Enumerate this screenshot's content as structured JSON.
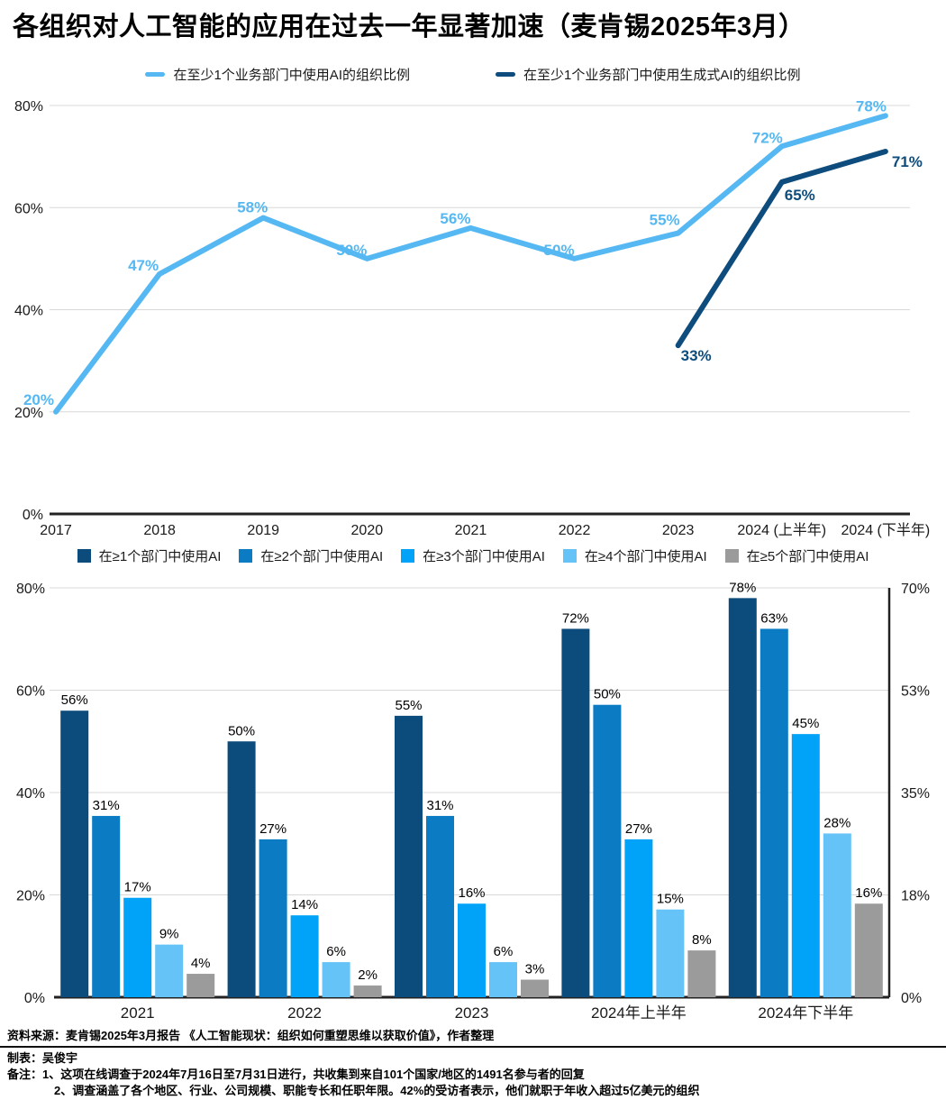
{
  "title": "各组织对人工智能的应用在过去一年显著加速（麦肯锡2025年3月）",
  "colors": {
    "light_blue": "#55B8F2",
    "dark_navy": "#0D4C7C",
    "bar1": "#0C4C7C",
    "bar2": "#0B7BC4",
    "bar3": "#00A3F7",
    "bar4": "#66C3F8",
    "bar5": "#9B9B9B",
    "grid": "#D8D8D8",
    "axis": "#222222",
    "tick_text": "#1A1A1A",
    "bar_label_text": "#000000"
  },
  "chart_data": [
    {
      "type": "line",
      "title": "",
      "categories": [
        "2017",
        "2018",
        "2019",
        "2020",
        "2021",
        "2022",
        "2023",
        "2024 (上半年)",
        "2024 (下半年)"
      ],
      "series": [
        {
          "name": "在至少1个业务部门中使用AI的组织比例",
          "color_key": "light_blue",
          "values": [
            20,
            47,
            58,
            50,
            56,
            50,
            55,
            72,
            78
          ]
        },
        {
          "name": "在至少1个业务部门中使用生成式AI的组织比例",
          "color_key": "dark_navy",
          "values": [
            null,
            null,
            null,
            null,
            null,
            null,
            33,
            65,
            71
          ]
        }
      ],
      "ylim": [
        0,
        80
      ],
      "yticks": [
        0,
        20,
        40,
        60,
        80
      ],
      "ytick_labels": [
        "0%",
        "20%",
        "40%",
        "60%",
        "80%"
      ],
      "grid": true,
      "legend_position": "top"
    },
    {
      "type": "bar",
      "title": "",
      "categories": [
        "2021",
        "2022",
        "2023",
        "2024年上半年",
        "2024年下半年"
      ],
      "series": [
        {
          "name": "在≥1个部门中使用AI",
          "color_key": "bar1",
          "axis": "left",
          "values": [
            56,
            50,
            55,
            72,
            78
          ]
        },
        {
          "name": "在≥2个部门中使用AI",
          "color_key": "bar2",
          "axis": "right",
          "values": [
            31,
            27,
            31,
            50,
            63
          ]
        },
        {
          "name": "在≥3个部门中使用AI",
          "color_key": "bar3",
          "axis": "right",
          "values": [
            17,
            14,
            16,
            27,
            45
          ]
        },
        {
          "name": "在≥4个部门中使用AI",
          "color_key": "bar4",
          "axis": "right",
          "values": [
            9,
            6,
            6,
            15,
            28
          ]
        },
        {
          "name": "在≥5个部门中使用AI",
          "color_key": "bar5",
          "axis": "right",
          "values": [
            4,
            2,
            3,
            8,
            16
          ]
        }
      ],
      "left_axis": {
        "max": 80,
        "ticks": [
          0,
          20,
          40,
          60,
          80
        ],
        "tick_labels": [
          "0%",
          "20%",
          "40%",
          "60%",
          "80%"
        ]
      },
      "right_axis": {
        "max": 70,
        "tick_labels": [
          "0%",
          "18%",
          "35%",
          "53%",
          "70%"
        ]
      },
      "grid": true,
      "legend_position": "top"
    }
  ],
  "footer": {
    "source": "资料来源：麦肯锡2025年3月报告 《人工智能现状：组织如何重塑思维以获取价值》，作者整理",
    "maker": "制表：吴俊宇",
    "note1": "备注：1、这项在线调查于2024年7月16日至7月31日进行，共收集到来自101个国家/地区的1491名参与者的回复",
    "note2": "2、调查涵盖了各个地区、行业、公司规模、职能专长和任职年限。42%的受访者表示，他们就职于年收入超过5亿美元的组织"
  }
}
